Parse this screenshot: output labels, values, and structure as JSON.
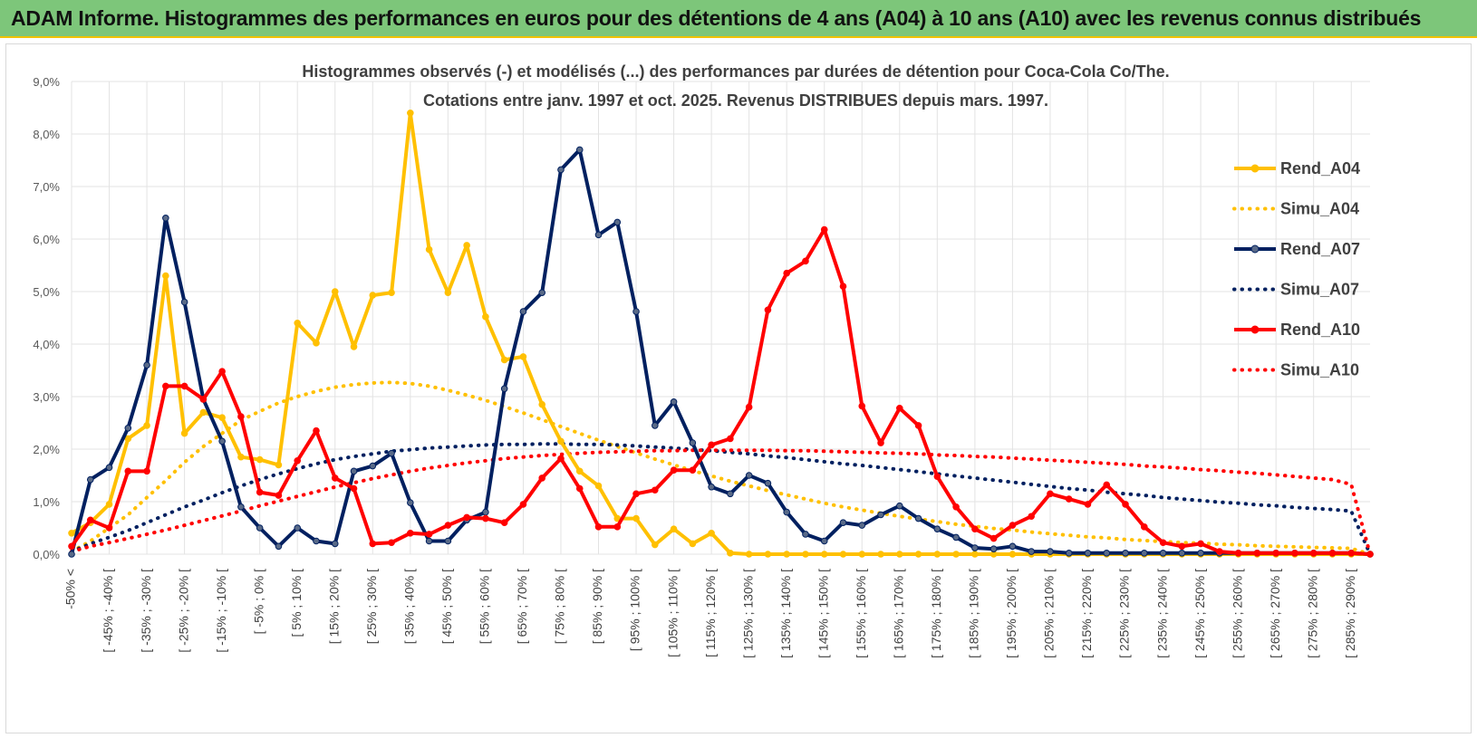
{
  "banner": {
    "title": "ADAM Informe. Histogrammes des performances en euros pour des détentions de 4 ans (A04) à 10 ans (A10) avec les revenus connus distribués"
  },
  "chart_data": {
    "type": "line",
    "title": "Histogrammes observés (-) et modélisés (...) des performances par durées de détention pour Coca-Cola Co/The.",
    "subtitle": "Cotations entre janv. 1997 et oct. 2025.  Revenus DISTRIBUES depuis mars. 1997.",
    "xlabel": "",
    "ylabel": "",
    "ylim": [
      0,
      9
    ],
    "yticks": [
      "0,0%",
      "1,0%",
      "2,0%",
      "3,0%",
      "4,0%",
      "5,0%",
      "6,0%",
      "7,0%",
      "8,0%",
      "9,0%"
    ],
    "grid": true,
    "legend_position": "right",
    "x_labels": [
      "-50% <",
      "[ -45% ; -40% [",
      "[ -35% ; -30% [",
      "[ -25% ; -20% [",
      "[ -15% ; -10% [",
      "[ -5% ; 0% [",
      "[ 5% ; 10% [",
      "[ 15% ; 20% [",
      "[ 25% ; 30% [",
      "[ 35% ; 40% [",
      "[ 45% ; 50% [",
      "[ 55% ; 60% [",
      "[ 65% ; 70% [",
      "[ 75% ; 80% [",
      "[ 85% ; 90% [",
      "[ 95% ; 100% [",
      "[ 105% ; 110% [",
      "[ 115% ; 120% [",
      "[ 125% ; 130% [",
      "[ 135% ; 140% [",
      "[ 145% ; 150% [",
      "[ 155% ; 160% [",
      "[ 165% ; 170% [",
      "[ 175% ; 180% [",
      "[ 185% ; 190% [",
      "[ 195% ; 200% [",
      "[ 205% ; 210% [",
      "[ 215% ; 220% [",
      "[ 225% ; 230% [",
      "[ 235% ; 240% [",
      "[ 245% ; 250% [",
      "[ 255% ; 260% [",
      "[ 265% ; 270% [",
      "[ 275% ; 280% [",
      "[ 285% ; 290% ["
    ],
    "n_points": 70,
    "series": [
      {
        "name": "Rend_A04",
        "style": "solid",
        "color": "#FFC000",
        "values": [
          0.4,
          0.6,
          0.95,
          2.2,
          2.45,
          5.3,
          2.3,
          2.7,
          2.6,
          1.85,
          1.8,
          1.7,
          4.4,
          4.02,
          5.0,
          3.95,
          4.93,
          4.98,
          8.4,
          5.8,
          4.98,
          5.88,
          4.52,
          3.7,
          3.76,
          2.85,
          2.15,
          1.58,
          1.3,
          0.68,
          0.68,
          0.18,
          0.48,
          0.2,
          0.4,
          0.02,
          0,
          0,
          0,
          0,
          0,
          0,
          0,
          0,
          0,
          0,
          0,
          0,
          0,
          0,
          0,
          0,
          0,
          0,
          0,
          0,
          0,
          0,
          0,
          0,
          0,
          0,
          0,
          0,
          0,
          0,
          0,
          0,
          0,
          0
        ]
      },
      {
        "name": "Simu_A04",
        "style": "dotted",
        "color": "#FFC000",
        "values": [
          0.05,
          0.25,
          0.5,
          0.75,
          1.08,
          1.4,
          1.75,
          2.05,
          2.3,
          2.55,
          2.72,
          2.88,
          3.0,
          3.1,
          3.18,
          3.23,
          3.26,
          3.27,
          3.25,
          3.2,
          3.12,
          3.03,
          2.93,
          2.81,
          2.69,
          2.56,
          2.43,
          2.3,
          2.17,
          2.05,
          1.93,
          1.81,
          1.7,
          1.59,
          1.49,
          1.39,
          1.3,
          1.21,
          1.13,
          1.05,
          0.97,
          0.9,
          0.84,
          0.78,
          0.72,
          0.67,
          0.62,
          0.57,
          0.53,
          0.49,
          0.46,
          0.42,
          0.39,
          0.36,
          0.33,
          0.31,
          0.28,
          0.26,
          0.24,
          0.22,
          0.21,
          0.19,
          0.18,
          0.16,
          0.15,
          0.14,
          0.13,
          0.12,
          0.11,
          0.0
        ]
      },
      {
        "name": "Rend_A07",
        "style": "solid",
        "color": "#002060",
        "values": [
          0.0,
          1.42,
          1.65,
          2.4,
          3.6,
          6.4,
          4.8,
          2.95,
          2.15,
          0.9,
          0.5,
          0.15,
          0.5,
          0.25,
          0.2,
          1.58,
          1.68,
          1.92,
          0.98,
          0.25,
          0.25,
          0.65,
          0.8,
          3.15,
          4.62,
          4.98,
          7.32,
          7.7,
          6.08,
          6.32,
          4.62,
          2.45,
          2.9,
          2.12,
          1.28,
          1.15,
          1.5,
          1.35,
          0.8,
          0.38,
          0.25,
          0.6,
          0.55,
          0.75,
          0.92,
          0.68,
          0.48,
          0.32,
          0.12,
          0.1,
          0.15,
          0.05,
          0.05,
          0.02,
          0.02,
          0.02,
          0.02,
          0.02,
          0.02,
          0.02,
          0.02,
          0.02,
          0.02,
          0.02,
          0.02,
          0.02,
          0.02,
          0.02,
          0.02,
          0.0
        ]
      },
      {
        "name": "Simu_A07",
        "style": "dotted",
        "color": "#002060",
        "values": [
          0.05,
          0.2,
          0.32,
          0.45,
          0.6,
          0.75,
          0.9,
          1.03,
          1.17,
          1.3,
          1.42,
          1.53,
          1.63,
          1.72,
          1.8,
          1.86,
          1.91,
          1.96,
          1.99,
          2.02,
          2.04,
          2.06,
          2.08,
          2.09,
          2.09,
          2.1,
          2.1,
          2.09,
          2.09,
          2.08,
          2.06,
          2.04,
          2.02,
          1.99,
          1.97,
          1.94,
          1.91,
          1.87,
          1.84,
          1.8,
          1.76,
          1.72,
          1.69,
          1.65,
          1.61,
          1.57,
          1.53,
          1.49,
          1.45,
          1.41,
          1.37,
          1.33,
          1.29,
          1.25,
          1.22,
          1.18,
          1.15,
          1.12,
          1.08,
          1.05,
          1.02,
          0.99,
          0.97,
          0.94,
          0.92,
          0.89,
          0.87,
          0.85,
          0.82,
          0.0
        ]
      },
      {
        "name": "Rend_A10",
        "style": "solid",
        "color": "#FF0000",
        "values": [
          0.15,
          0.65,
          0.5,
          1.58,
          1.58,
          3.2,
          3.2,
          2.95,
          3.48,
          2.62,
          1.18,
          1.12,
          1.78,
          2.35,
          1.45,
          1.25,
          0.2,
          0.22,
          0.4,
          0.38,
          0.55,
          0.7,
          0.68,
          0.6,
          0.95,
          1.45,
          1.82,
          1.25,
          0.52,
          0.52,
          1.15,
          1.22,
          1.6,
          1.6,
          2.08,
          2.2,
          2.8,
          4.65,
          5.35,
          5.58,
          6.18,
          5.1,
          2.82,
          2.12,
          2.78,
          2.45,
          1.48,
          0.9,
          0.48,
          0.3,
          0.55,
          0.72,
          1.15,
          1.05,
          0.95,
          1.32,
          0.95,
          0.52,
          0.22,
          0.15,
          0.2,
          0.05,
          0.02,
          0.02,
          0.02,
          0.02,
          0.02,
          0.02,
          0.02,
          0.0
        ]
      },
      {
        "name": "Simu_A10",
        "style": "dotted",
        "color": "#FF0000",
        "values": [
          0.05,
          0.15,
          0.22,
          0.3,
          0.38,
          0.46,
          0.55,
          0.64,
          0.73,
          0.82,
          0.92,
          1.01,
          1.1,
          1.19,
          1.28,
          1.36,
          1.44,
          1.51,
          1.58,
          1.64,
          1.69,
          1.74,
          1.78,
          1.82,
          1.85,
          1.88,
          1.9,
          1.92,
          1.94,
          1.95,
          1.96,
          1.97,
          1.97,
          1.98,
          1.98,
          1.98,
          1.98,
          1.98,
          1.97,
          1.97,
          1.96,
          1.95,
          1.94,
          1.93,
          1.92,
          1.91,
          1.89,
          1.88,
          1.86,
          1.85,
          1.83,
          1.81,
          1.79,
          1.77,
          1.75,
          1.73,
          1.71,
          1.68,
          1.66,
          1.64,
          1.61,
          1.59,
          1.56,
          1.54,
          1.51,
          1.48,
          1.45,
          1.42,
          1.33,
          0.0
        ]
      }
    ]
  }
}
